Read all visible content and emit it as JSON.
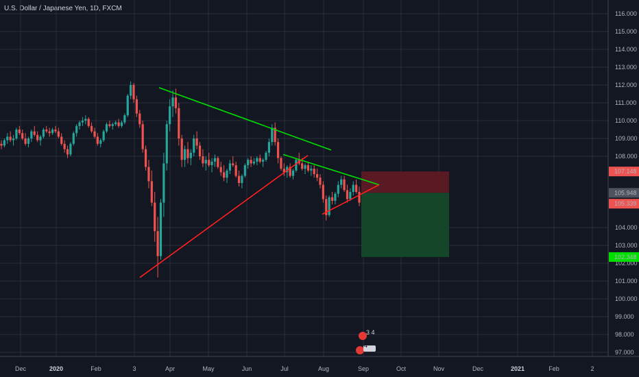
{
  "header": {
    "title": "U.S. Dollar / Japanese Yen, 1D, FXCM"
  },
  "colors": {
    "background": "#131722",
    "grid": "#2a2e39",
    "up": "#26a69a",
    "down": "#ef5350",
    "green_line": "#00e000",
    "red_line": "#ff2020",
    "stop_zone": "#5d1a24",
    "target_zone": "#14492a"
  },
  "chart_data": {
    "type": "candlestick",
    "title": "U.S. Dollar / Japanese Yen, 1D, FXCM",
    "ylim": [
      96.5,
      116.5
    ],
    "y_ticks": [
      "116.000",
      "115.000",
      "114.000",
      "113.000",
      "112.000",
      "111.000",
      "110.000",
      "109.000",
      "108.000",
      "104.000",
      "103.000",
      "102.000",
      "101.000",
      "100.000",
      "99.000",
      "98.000",
      "97.000"
    ],
    "x_ticks": [
      {
        "label": "Dec",
        "bold": false
      },
      {
        "label": "2020",
        "bold": true
      },
      {
        "label": "Feb",
        "bold": false
      },
      {
        "label": "3",
        "bold": false
      },
      {
        "label": "Apr",
        "bold": false
      },
      {
        "label": "May",
        "bold": false
      },
      {
        "label": "Jun",
        "bold": false
      },
      {
        "label": "Jul",
        "bold": false
      },
      {
        "label": "Aug",
        "bold": false
      },
      {
        "label": "Sep",
        "bold": false
      },
      {
        "label": "Oct",
        "bold": false
      },
      {
        "label": "Nov",
        "bold": false
      },
      {
        "label": "Dec",
        "bold": false
      },
      {
        "label": "2021",
        "bold": true
      },
      {
        "label": "Feb",
        "bold": false
      },
      {
        "label": "2",
        "bold": false
      }
    ],
    "price_tags": [
      {
        "label": "107.148",
        "value": 107.148,
        "color": "#ef5350"
      },
      {
        "label": "105.948",
        "value": 105.948,
        "color": "#4c525e"
      },
      {
        "label": "105.339",
        "value": 105.339,
        "color": "#ef5350"
      },
      {
        "label": "102.348",
        "value": 102.348,
        "color": "#00e000"
      }
    ],
    "trendlines": [
      {
        "name": "upper-resistance",
        "color": "green",
        "from": [
          "Mar 24",
          111.85
        ],
        "to": [
          "Aug 10",
          108.35
        ]
      },
      {
        "name": "lower-support",
        "color": "red",
        "from": [
          "Mar 9",
          101.2
        ],
        "to": [
          "Jul 23",
          108.05
        ]
      },
      {
        "name": "inner-resistance",
        "color": "green",
        "from": [
          "Jul 1",
          108.1
        ],
        "to": [
          "Sep 10",
          106.4
        ]
      },
      {
        "name": "inner-support",
        "color": "red",
        "from": [
          "Jul 31",
          104.75
        ],
        "to": [
          "Sep 10",
          106.4
        ]
      }
    ],
    "positions": {
      "entry": 105.948,
      "stop": 107.148,
      "target": 102.348,
      "stop_zone": [
        105.948,
        107.148
      ],
      "target_zone": [
        102.348,
        105.948
      ],
      "date_range": [
        "Sep 3",
        "Oct 10"
      ]
    },
    "markers": [
      {
        "label": "3 4",
        "date": "Aug 26"
      },
      {
        "label": "4",
        "date": "Aug 26"
      }
    ],
    "candles_ohlc": [
      [
        108.7,
        108.9,
        108.4,
        108.6
      ],
      [
        108.6,
        109.0,
        108.5,
        108.9
      ],
      [
        108.9,
        109.3,
        108.7,
        109.1
      ],
      [
        109.1,
        109.4,
        108.8,
        108.9
      ],
      [
        108.9,
        109.2,
        108.6,
        109.0
      ],
      [
        109.0,
        109.6,
        108.9,
        109.5
      ],
      [
        109.5,
        109.7,
        109.2,
        109.3
      ],
      [
        109.3,
        109.5,
        108.9,
        109.0
      ],
      [
        109.0,
        109.3,
        108.6,
        108.7
      ],
      [
        108.7,
        109.1,
        108.5,
        109.0
      ],
      [
        109.0,
        109.5,
        108.8,
        109.4
      ],
      [
        109.4,
        109.7,
        109.1,
        109.2
      ],
      [
        109.2,
        109.4,
        108.8,
        108.9
      ],
      [
        108.9,
        109.2,
        108.6,
        109.1
      ],
      [
        109.1,
        109.6,
        109.0,
        109.5
      ],
      [
        109.5,
        109.7,
        109.3,
        109.4
      ],
      [
        109.4,
        109.6,
        109.1,
        109.3
      ],
      [
        109.3,
        109.6,
        109.2,
        109.5
      ],
      [
        109.5,
        109.7,
        109.3,
        109.4
      ],
      [
        109.4,
        109.6,
        109.0,
        109.1
      ],
      [
        109.1,
        109.3,
        108.6,
        108.7
      ],
      [
        108.7,
        108.9,
        108.2,
        108.4
      ],
      [
        108.4,
        108.6,
        107.9,
        108.1
      ],
      [
        108.1,
        108.8,
        108.0,
        108.7
      ],
      [
        108.7,
        109.4,
        108.6,
        109.3
      ],
      [
        109.3,
        109.8,
        109.1,
        109.7
      ],
      [
        109.7,
        110.0,
        109.5,
        109.9
      ],
      [
        109.9,
        110.2,
        109.7,
        110.0
      ],
      [
        110.0,
        110.3,
        109.8,
        110.1
      ],
      [
        110.1,
        110.2,
        109.6,
        109.7
      ],
      [
        109.7,
        109.9,
        109.3,
        109.4
      ],
      [
        109.4,
        109.6,
        109.0,
        109.1
      ],
      [
        109.1,
        109.3,
        108.6,
        108.7
      ],
      [
        108.7,
        109.0,
        108.5,
        108.9
      ],
      [
        108.9,
        109.5,
        108.8,
        109.4
      ],
      [
        109.4,
        109.9,
        109.3,
        109.8
      ],
      [
        109.8,
        110.0,
        109.6,
        109.7
      ],
      [
        109.7,
        109.9,
        109.5,
        109.8
      ],
      [
        109.8,
        110.0,
        109.7,
        109.9
      ],
      [
        109.9,
        110.1,
        109.6,
        109.7
      ],
      [
        109.7,
        110.0,
        109.6,
        109.9
      ],
      [
        109.9,
        110.4,
        109.8,
        110.3
      ],
      [
        110.3,
        111.5,
        110.2,
        111.4
      ],
      [
        111.4,
        112.2,
        111.2,
        112.0
      ],
      [
        112.0,
        112.1,
        111.0,
        111.2
      ],
      [
        111.2,
        111.4,
        110.2,
        110.4
      ],
      [
        110.4,
        110.6,
        109.6,
        109.8
      ],
      [
        109.8,
        110.0,
        108.2,
        108.4
      ],
      [
        108.4,
        108.6,
        107.2,
        107.4
      ],
      [
        107.4,
        107.8,
        106.2,
        106.6
      ],
      [
        106.6,
        107.2,
        105.2,
        105.4
      ],
      [
        105.4,
        106.0,
        103.2,
        103.8
      ],
      [
        103.8,
        104.6,
        101.2,
        102.4
      ],
      [
        102.4,
        105.6,
        102.2,
        105.4
      ],
      [
        105.4,
        108.2,
        104.6,
        107.6
      ],
      [
        107.6,
        110.0,
        107.2,
        109.8
      ],
      [
        109.8,
        111.2,
        109.4,
        110.8
      ],
      [
        110.8,
        111.7,
        110.2,
        111.3
      ],
      [
        111.3,
        111.8,
        110.4,
        110.7
      ],
      [
        110.7,
        111.0,
        108.6,
        109.0
      ],
      [
        109.0,
        109.2,
        107.4,
        107.8
      ],
      [
        107.8,
        108.6,
        107.4,
        108.4
      ],
      [
        108.4,
        108.8,
        107.6,
        107.9
      ],
      [
        107.9,
        108.4,
        107.5,
        108.2
      ],
      [
        108.2,
        109.2,
        108.0,
        109.0
      ],
      [
        109.0,
        109.4,
        108.4,
        108.6
      ],
      [
        108.6,
        108.8,
        107.8,
        108.0
      ],
      [
        108.0,
        108.4,
        107.4,
        107.6
      ],
      [
        107.6,
        108.0,
        107.2,
        107.8
      ],
      [
        107.8,
        108.2,
        107.4,
        107.5
      ],
      [
        107.5,
        107.9,
        107.1,
        107.7
      ],
      [
        107.7,
        108.1,
        107.4,
        107.9
      ],
      [
        107.9,
        108.0,
        107.3,
        107.4
      ],
      [
        107.4,
        107.7,
        106.9,
        107.1
      ],
      [
        107.1,
        107.5,
        106.6,
        106.8
      ],
      [
        106.8,
        107.3,
        106.5,
        107.2
      ],
      [
        107.2,
        107.8,
        107.0,
        107.6
      ],
      [
        107.6,
        108.0,
        107.4,
        107.5
      ],
      [
        107.5,
        107.7,
        106.8,
        106.9
      ],
      [
        106.9,
        107.2,
        106.3,
        106.5
      ],
      [
        106.5,
        107.0,
        106.2,
        106.9
      ],
      [
        106.9,
        107.6,
        106.8,
        107.5
      ],
      [
        107.5,
        107.9,
        107.3,
        107.8
      ],
      [
        107.8,
        108.0,
        107.4,
        107.6
      ],
      [
        107.6,
        107.9,
        107.5,
        107.7
      ],
      [
        107.7,
        108.0,
        107.5,
        107.9
      ],
      [
        107.9,
        108.1,
        107.6,
        107.7
      ],
      [
        107.7,
        107.9,
        107.4,
        107.8
      ],
      [
        107.8,
        108.3,
        107.7,
        108.2
      ],
      [
        108.2,
        109.0,
        108.0,
        108.8
      ],
      [
        108.8,
        109.8,
        108.6,
        109.6
      ],
      [
        109.6,
        109.9,
        108.6,
        108.8
      ],
      [
        108.8,
        109.0,
        107.6,
        107.9
      ],
      [
        107.9,
        108.0,
        107.2,
        107.3
      ],
      [
        107.3,
        107.6,
        106.9,
        107.1
      ],
      [
        107.1,
        107.5,
        106.8,
        107.4
      ],
      [
        107.4,
        107.6,
        106.8,
        106.9
      ],
      [
        106.9,
        107.3,
        106.7,
        107.2
      ],
      [
        107.2,
        107.9,
        107.1,
        107.8
      ],
      [
        107.8,
        108.2,
        107.5,
        107.6
      ],
      [
        107.6,
        107.9,
        107.2,
        107.3
      ],
      [
        107.3,
        107.6,
        107.0,
        107.5
      ],
      [
        107.5,
        107.7,
        107.1,
        107.2
      ],
      [
        107.2,
        107.5,
        106.9,
        107.3
      ],
      [
        107.3,
        107.5,
        106.8,
        107.0
      ],
      [
        107.0,
        107.3,
        106.6,
        106.8
      ],
      [
        106.8,
        107.0,
        106.2,
        106.4
      ],
      [
        106.4,
        106.6,
        105.4,
        105.6
      ],
      [
        105.6,
        105.8,
        104.4,
        104.7
      ],
      [
        104.7,
        105.8,
        104.6,
        105.7
      ],
      [
        105.7,
        106.0,
        105.3,
        105.5
      ],
      [
        105.5,
        106.0,
        105.3,
        105.9
      ],
      [
        105.9,
        106.6,
        105.7,
        106.4
      ],
      [
        106.4,
        106.9,
        106.2,
        106.7
      ],
      [
        106.7,
        106.9,
        106.0,
        106.1
      ],
      [
        106.1,
        106.4,
        105.4,
        105.6
      ],
      [
        105.6,
        106.2,
        105.5,
        106.0
      ],
      [
        106.0,
        106.6,
        105.8,
        106.4
      ],
      [
        106.4,
        106.7,
        105.9,
        106.0
      ],
      [
        106.0,
        106.3,
        105.2,
        105.4
      ]
    ]
  }
}
